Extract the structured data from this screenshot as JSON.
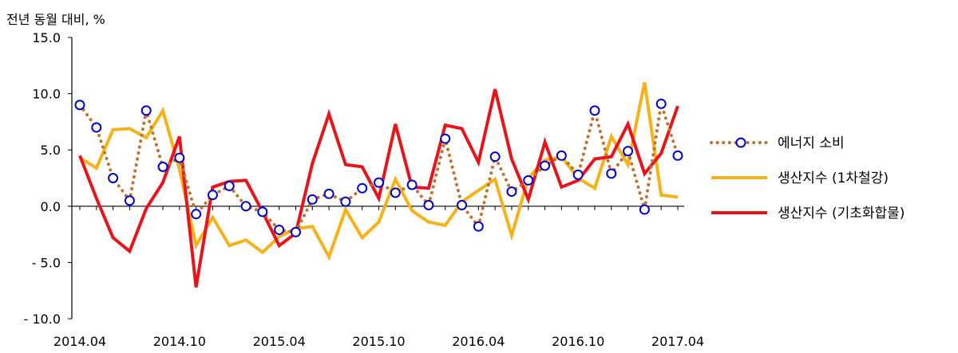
{
  "chart_data": {
    "type": "line",
    "ylabel": "전년 동월 대비, %",
    "ylim": [
      -10,
      15
    ],
    "yticks": [
      15,
      10,
      5,
      0,
      -5,
      -10
    ],
    "ytick_labels": [
      "15.0",
      "10.0",
      "5.0",
      "0.0",
      "- 5.0",
      "- 10.0"
    ],
    "x": [
      "2014.04",
      "2014.05",
      "2014.06",
      "2014.07",
      "2014.08",
      "2014.09",
      "2014.10",
      "2014.11",
      "2014.12",
      "2015.01",
      "2015.02",
      "2015.03",
      "2015.04",
      "2015.05",
      "2015.06",
      "2015.07",
      "2015.08",
      "2015.09",
      "2015.10",
      "2015.11",
      "2015.12",
      "2016.01",
      "2016.02",
      "2016.03",
      "2016.04",
      "2016.05",
      "2016.06",
      "2016.07",
      "2016.08",
      "2016.09",
      "2016.10",
      "2016.11",
      "2016.12",
      "2017.01",
      "2017.02",
      "2017.03",
      "2017.04"
    ],
    "xtick_labels": [
      "2014.04",
      "2014.10",
      "2015.04",
      "2015.10",
      "2016.04",
      "2016.10",
      "2017.04"
    ],
    "grid": false,
    "legend": "right",
    "series": [
      {
        "name": "에너지 소비",
        "style": "dotted-with-circle-markers",
        "color": "#C0712F",
        "marker_color": "#0000CC",
        "values": [
          9.0,
          7.0,
          2.5,
          0.5,
          8.5,
          3.5,
          4.3,
          -0.7,
          1.0,
          1.8,
          0.0,
          -0.5,
          -2.1,
          -2.3,
          0.6,
          1.1,
          0.4,
          1.6,
          2.1,
          1.2,
          1.9,
          0.1,
          6.0,
          0.1,
          -1.8,
          4.4,
          1.3,
          2.3,
          3.6,
          4.5,
          2.8,
          8.5,
          2.9,
          4.9,
          -0.3,
          9.1,
          4.5
        ]
      },
      {
        "name": "생산지수 (1차철강)",
        "style": "solid",
        "color": "#F5B21A",
        "values": [
          4.3,
          3.4,
          6.8,
          6.9,
          6.1,
          8.5,
          3.3,
          -3.5,
          -1.0,
          -3.5,
          -3.0,
          -4.1,
          -2.7,
          -2.0,
          -1.8,
          -4.5,
          -0.3,
          -2.8,
          -1.4,
          2.4,
          -0.4,
          -1.4,
          -1.7,
          0.4,
          1.4,
          2.4,
          -2.6,
          2.5,
          4.1,
          4.4,
          2.5,
          1.6,
          6.2,
          3.7,
          11.0,
          1.0,
          0.8
        ]
      },
      {
        "name": "생산지수 (기초화합물)",
        "style": "solid",
        "color": "#E8141B",
        "values": [
          4.5,
          0.7,
          -2.8,
          -4.0,
          -0.2,
          2.1,
          6.2,
          -7.2,
          1.7,
          2.2,
          2.3,
          -0.5,
          -3.5,
          -2.4,
          3.8,
          8.2,
          3.7,
          3.5,
          0.7,
          7.3,
          1.7,
          1.6,
          7.2,
          6.9,
          3.9,
          10.4,
          4.2,
          0.6,
          5.7,
          1.7,
          2.3,
          4.2,
          4.4,
          7.3,
          2.9,
          4.7,
          8.9
        ]
      }
    ]
  }
}
